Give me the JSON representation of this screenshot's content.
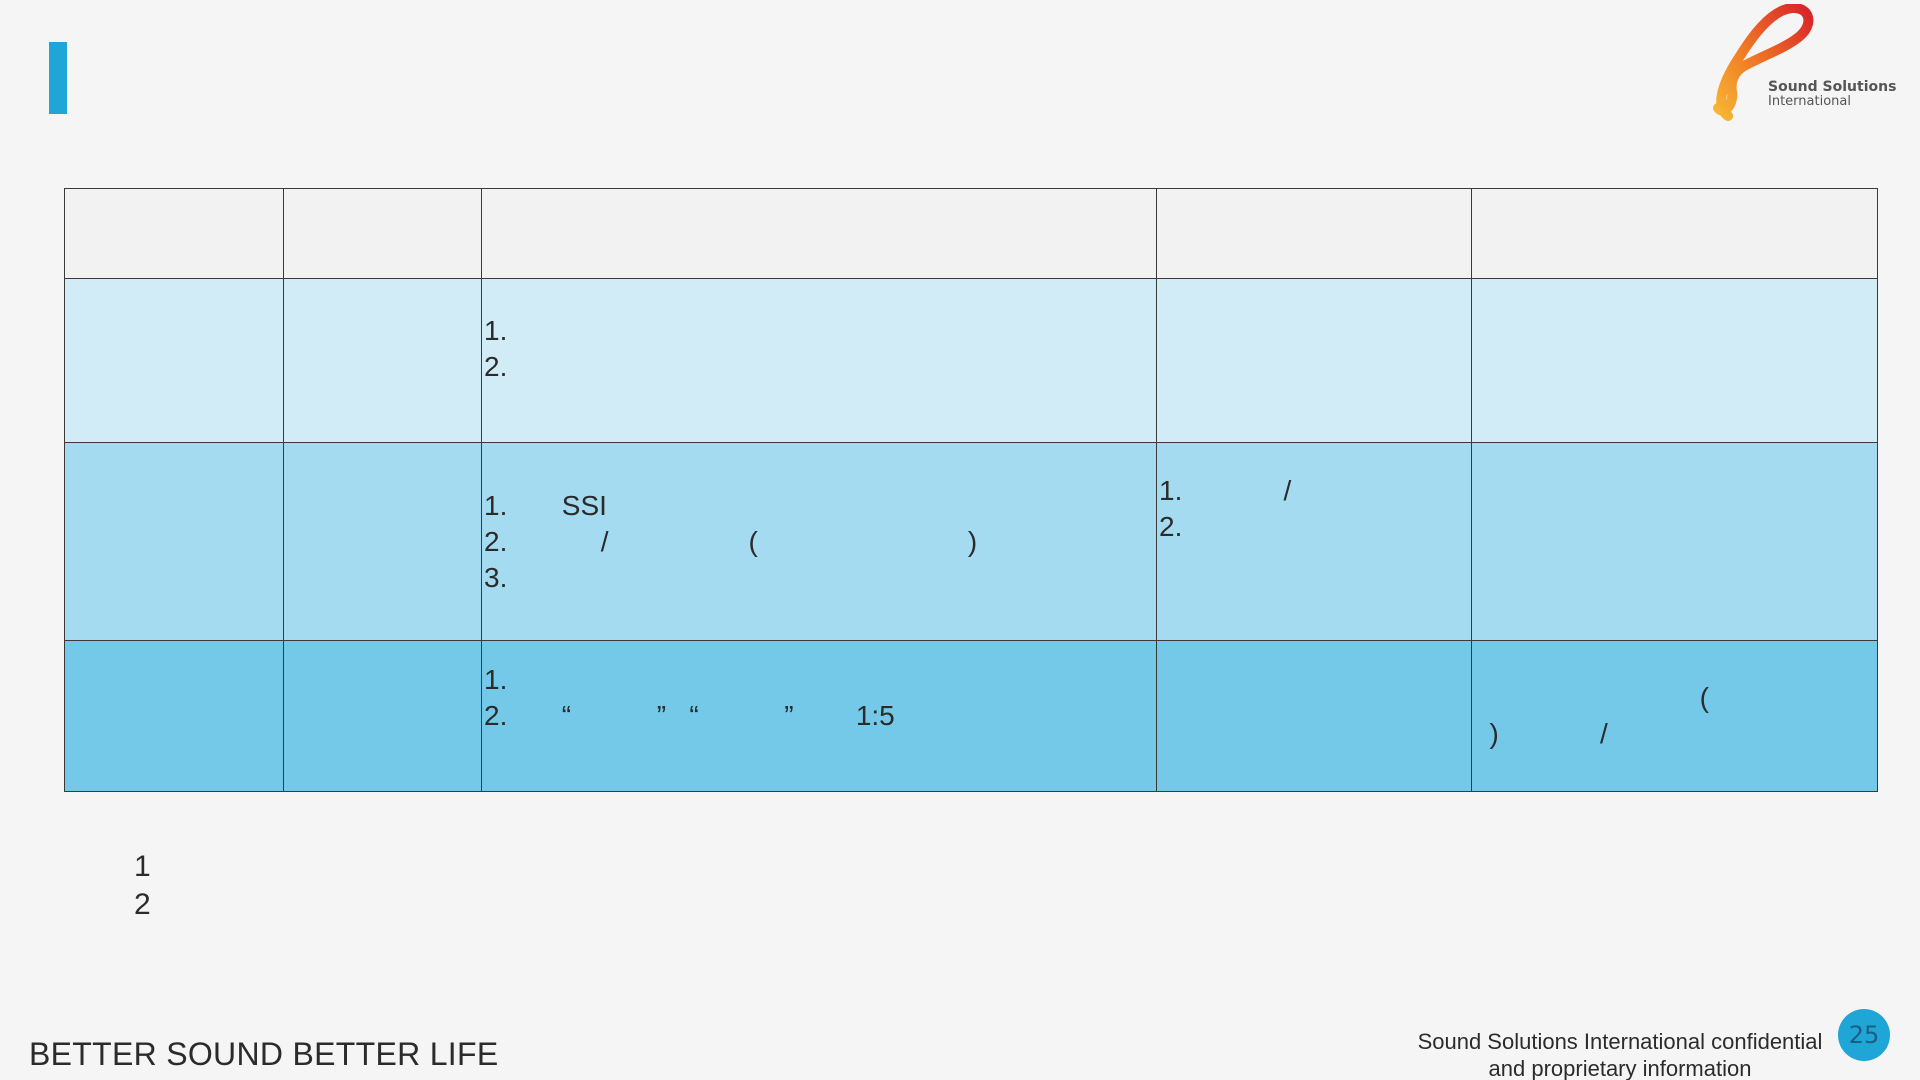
{
  "header": {
    "logo_line1": "Sound Solutions",
    "logo_line2": "International"
  },
  "table": {
    "header_row": [
      "",
      "",
      "",
      "",
      ""
    ],
    "rows": [
      {
        "cells": [
          [
            ""
          ],
          [
            ""
          ],
          [
            "1.",
            "2."
          ],
          [
            ""
          ],
          [
            ""
          ]
        ]
      },
      {
        "cells": [
          [
            ""
          ],
          [
            ""
          ],
          [
            "1.       SSI",
            "2.            /                  (                           )",
            "3."
          ],
          [
            "1.             /",
            "2."
          ],
          [
            ""
          ]
        ]
      },
      {
        "cells": [
          [
            ""
          ],
          [
            ""
          ],
          [
            "1.",
            "2.       “           ”   “           ”        1:5"
          ],
          [
            ""
          ],
          [
            "                             (",
            "  )             /"
          ]
        ]
      }
    ]
  },
  "notes": [
    "1",
    "2"
  ],
  "footer": {
    "slogan": "BETTER SOUND BETTER LIFE",
    "confidential_line1": "Sound Solutions International confidential",
    "confidential_line2": "and proprietary information",
    "page_number": "25"
  },
  "colors": {
    "accent": "#1fa6d7",
    "row1": "#d2ecf7",
    "row2": "#a4dbf0",
    "row3": "#74c9e8",
    "header_row": "#f2f2f2"
  }
}
